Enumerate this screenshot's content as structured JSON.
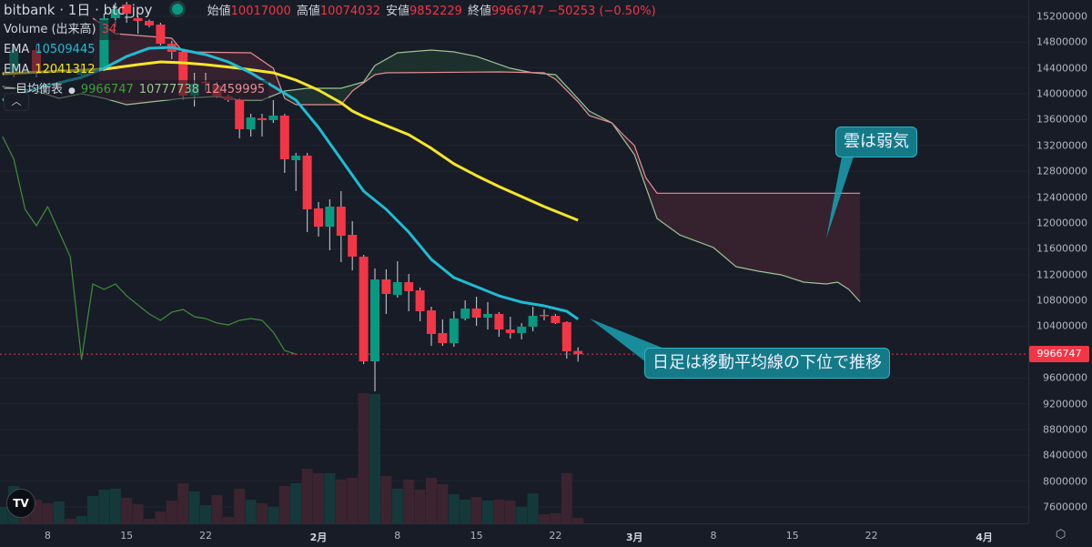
{
  "header": {
    "title": "bitbank · 1日 · btc_jpy",
    "ohlc": [
      {
        "key": "始値",
        "value": "10017000"
      },
      {
        "key": "高値",
        "value": "10074032"
      },
      {
        "key": "安値",
        "value": "9852229"
      },
      {
        "key": "終値",
        "value": "9966747"
      }
    ],
    "change": "−50253 (−0.50%)"
  },
  "legend": {
    "volume": {
      "label": "Volume (出来高)",
      "value": "34"
    },
    "ema1": {
      "label": "EMA",
      "value": "10509445"
    },
    "ema2": {
      "label": "EMA",
      "value": "12041312"
    },
    "ichimoku": {
      "label": "一目均衡表",
      "v1": "9966747",
      "v2": "10777738",
      "v3": "12459995"
    },
    "collapse_icon": "chevron-up"
  },
  "annotations": {
    "cloud": "雲は弱気",
    "daily": "日足は移動平均線の下位で推移"
  },
  "logo": "TV",
  "colors": {
    "up": "#089981",
    "down": "#f23645",
    "ema_short": "#1fbcd2",
    "ema_long": "#f5e52a",
    "lagging": "#3f8f3a",
    "span_a": "#9cc493",
    "span_b": "#e58f93",
    "cloud_bear": "#3a2230",
    "cloud_bull": "#1e3330",
    "annotation": "#147a87"
  },
  "chart_data": {
    "type": "candlestick",
    "yaxis": {
      "range": [
        7400000,
        15400000
      ],
      "ticks": [
        "15200000",
        "14800000",
        "14400000",
        "14000000",
        "13600000",
        "13200000",
        "12800000",
        "12400000",
        "12000000",
        "11600000",
        "11200000",
        "10800000",
        "10400000",
        "9600000",
        "9200000",
        "8800000",
        "8400000",
        "8000000",
        "7600000"
      ],
      "last_price": "9966747"
    },
    "xaxis": {
      "ticks": [
        {
          "label": "8",
          "date": "1/8"
        },
        {
          "label": "15",
          "date": "1/15"
        },
        {
          "label": "22",
          "date": "1/22"
        },
        {
          "label": "2月",
          "date": "2/1",
          "month": true
        },
        {
          "label": "8",
          "date": "2/8"
        },
        {
          "label": "15",
          "date": "2/15"
        },
        {
          "label": "22",
          "date": "2/22"
        },
        {
          "label": "3月",
          "date": "3/1",
          "month": true
        },
        {
          "label": "8",
          "date": "3/8"
        },
        {
          "label": "15",
          "date": "3/15"
        },
        {
          "label": "22",
          "date": "3/22"
        },
        {
          "label": "4月",
          "date": "4/1",
          "month": true
        }
      ]
    },
    "candles": [
      [
        "1/5",
        14326000,
        14749000,
        14255000,
        14678000
      ],
      [
        "1/7",
        14678000,
        14749000,
        14255000,
        14326000
      ],
      [
        "1/11",
        14298000,
        14439000,
        14241000,
        14382000
      ],
      [
        "1/13",
        14396000,
        15242000,
        14354000,
        15172000
      ],
      [
        "1/14",
        15172000,
        15412000,
        15031000,
        15313000
      ],
      [
        "1/15",
        15383000,
        15426000,
        15101000,
        15242000
      ],
      [
        "1/16",
        15172000,
        15200000,
        14932000,
        15130000
      ],
      [
        "1/17",
        15130000,
        15150000,
        15031000,
        15059000
      ],
      [
        "1/18",
        15073000,
        15101000,
        14749000,
        14777000
      ],
      [
        "1/19",
        14777000,
        14819000,
        14537000,
        14650000
      ],
      [
        "1/20",
        14650000,
        14678000,
        13903000,
        13973000
      ],
      [
        "1/21",
        13973000,
        14326000,
        13804000,
        14157000
      ],
      [
        "1/22",
        14185000,
        14326000,
        14044000,
        14171000
      ],
      [
        "1/23",
        14128000,
        14185000,
        13931000,
        13959000
      ],
      [
        "1/24",
        13959000,
        13987000,
        13875000,
        13903000
      ],
      [
        "1/25",
        13903000,
        13931000,
        13311000,
        13452000
      ],
      [
        "1/26",
        13452000,
        13691000,
        13339000,
        13635000
      ],
      [
        "1/27",
        13621000,
        13691000,
        13339000,
        13593000
      ],
      [
        "1/28",
        13593000,
        13903000,
        13550000,
        13663000
      ],
      [
        "1/29",
        13663000,
        13691000,
        12775000,
        12986000
      ],
      [
        "1/30",
        12972000,
        13085000,
        12493000,
        13043000
      ],
      [
        "1/31",
        13043000,
        13085000,
        11858000,
        12211000
      ],
      [
        "2/1",
        12225000,
        12324000,
        11788000,
        11943000
      ],
      [
        "2/2",
        11943000,
        12366000,
        11576000,
        12253000
      ],
      [
        "2/3",
        12253000,
        12493000,
        11393000,
        11802000
      ],
      [
        "2/4",
        11816000,
        12028000,
        11266000,
        11478000
      ],
      [
        "2/5",
        11478000,
        11506000,
        9814000,
        9856000
      ],
      [
        "2/6",
        9856000,
        11294000,
        9391000,
        11125000
      ],
      [
        "2/7",
        11125000,
        11280000,
        10590000,
        10900000
      ],
      [
        "2/8",
        10886000,
        11407000,
        10843000,
        11083000
      ],
      [
        "2/9",
        11083000,
        11210000,
        10632000,
        10942000
      ],
      [
        "2/10",
        10956000,
        10998000,
        10477000,
        10632000
      ],
      [
        "2/11",
        10646000,
        10702000,
        10096000,
        10280000
      ],
      [
        "2/12",
        10294000,
        10505000,
        10096000,
        10139000
      ],
      [
        "2/13",
        10139000,
        10632000,
        10082000,
        10519000
      ],
      [
        "2/14",
        10519000,
        10801000,
        10491000,
        10674000
      ],
      [
        "2/15",
        10674000,
        10857000,
        10407000,
        10533000
      ],
      [
        "2/16",
        10533000,
        10773000,
        10350000,
        10590000
      ],
      [
        "2/17",
        10590000,
        10618000,
        10237000,
        10350000
      ],
      [
        "2/18",
        10350000,
        10547000,
        10209000,
        10294000
      ],
      [
        "2/19",
        10294000,
        10449000,
        10195000,
        10393000
      ],
      [
        "2/20",
        10393000,
        10702000,
        10322000,
        10561000
      ],
      [
        "2/21",
        10575000,
        10660000,
        10491000,
        10554000
      ],
      [
        "2/22",
        10561000,
        10590000,
        10435000,
        10449000
      ],
      [
        "2/23",
        10463000,
        10477000,
        9898000,
        10011000
      ],
      [
        "2/24",
        10017000,
        10074032,
        9852229,
        9966747
      ]
    ],
    "volume": [
      [
        "1/4",
        103,
        "up"
      ],
      [
        "1/5",
        234,
        "up"
      ],
      [
        "1/6",
        160,
        "down"
      ],
      [
        "1/7",
        148,
        "down"
      ],
      [
        "1/8",
        125,
        "down"
      ],
      [
        "1/9",
        137,
        "up"
      ],
      [
        "1/10",
        29,
        "down"
      ],
      [
        "1/11",
        46,
        "up"
      ],
      [
        "1/12",
        171,
        "up"
      ],
      [
        "1/13",
        211,
        "up"
      ],
      [
        "1/14",
        217,
        "up"
      ],
      [
        "1/15",
        160,
        "down"
      ],
      [
        "1/16",
        120,
        "down"
      ],
      [
        "1/17",
        29,
        "down"
      ],
      [
        "1/18",
        74,
        "down"
      ],
      [
        "1/19",
        143,
        "down"
      ],
      [
        "1/20",
        251,
        "down"
      ],
      [
        "1/21",
        200,
        "up"
      ],
      [
        "1/22",
        114,
        "up"
      ],
      [
        "1/23",
        177,
        "down"
      ],
      [
        "1/24",
        40,
        "down"
      ],
      [
        "1/25",
        217,
        "down"
      ],
      [
        "1/26",
        148,
        "up"
      ],
      [
        "1/27",
        125,
        "down"
      ],
      [
        "1/28",
        103,
        "up"
      ],
      [
        "1/29",
        234,
        "down"
      ],
      [
        "1/30",
        251,
        "up"
      ],
      [
        "1/31",
        342,
        "down"
      ],
      [
        "2/1",
        314,
        "down"
      ],
      [
        "2/2",
        314,
        "up"
      ],
      [
        "2/3",
        274,
        "down"
      ],
      [
        "2/4",
        285,
        "down"
      ],
      [
        "2/5",
        815,
        "down"
      ],
      [
        "2/6",
        809,
        "up"
      ],
      [
        "2/7",
        296,
        "down"
      ],
      [
        "2/8",
        217,
        "up"
      ],
      [
        "2/9",
        274,
        "down"
      ],
      [
        "2/10",
        211,
        "down"
      ],
      [
        "2/11",
        285,
        "down"
      ],
      [
        "2/12",
        245,
        "down"
      ],
      [
        "2/13",
        182,
        "up"
      ],
      [
        "2/14",
        148,
        "up"
      ],
      [
        "2/15",
        165,
        "down"
      ],
      [
        "2/16",
        143,
        "up"
      ],
      [
        "2/17",
        148,
        "down"
      ],
      [
        "2/18",
        143,
        "down"
      ],
      [
        "2/19",
        103,
        "up"
      ],
      [
        "2/20",
        188,
        "up"
      ],
      [
        "2/21",
        57,
        "down"
      ],
      [
        "2/22",
        63,
        "down"
      ],
      [
        "2/23",
        314,
        "down"
      ],
      [
        "2/24",
        34,
        "down"
      ]
    ],
    "lines": {
      "ema_short": [
        [
          "1/4",
          13903000
        ],
        [
          "1/7",
          14086000
        ],
        [
          "1/11",
          14255000
        ],
        [
          "1/13",
          14396000
        ],
        [
          "1/15",
          14580000
        ],
        [
          "1/17",
          14707000
        ],
        [
          "1/19",
          14721000
        ],
        [
          "1/20",
          14678000
        ],
        [
          "1/22",
          14608000
        ],
        [
          "1/24",
          14495000
        ],
        [
          "1/26",
          14326000
        ],
        [
          "1/28",
          14114000
        ],
        [
          "1/30",
          13903000
        ],
        [
          "2/1",
          13480000
        ],
        [
          "2/3",
          12986000
        ],
        [
          "2/5",
          12493000
        ],
        [
          "2/7",
          12211000
        ],
        [
          "2/9",
          11858000
        ],
        [
          "2/11",
          11435000
        ],
        [
          "2/13",
          11153000
        ],
        [
          "2/15",
          11012000
        ],
        [
          "2/17",
          10871000
        ],
        [
          "2/19",
          10773000
        ],
        [
          "2/21",
          10716000
        ],
        [
          "2/23",
          10632000
        ],
        [
          "2/24",
          10509445
        ]
      ],
      "ema_long": [
        [
          "1/4",
          14312000
        ],
        [
          "1/13",
          14382000
        ],
        [
          "1/16",
          14453000
        ],
        [
          "1/18",
          14495000
        ],
        [
          "1/20",
          14481000
        ],
        [
          "1/22",
          14453000
        ],
        [
          "1/25",
          14396000
        ],
        [
          "1/28",
          14326000
        ],
        [
          "1/30",
          14213000
        ],
        [
          "2/1",
          14058000
        ],
        [
          "2/3",
          13861000
        ],
        [
          "2/4",
          13734000
        ],
        [
          "2/5",
          13649000
        ],
        [
          "2/7",
          13508000
        ],
        [
          "2/9",
          13367000
        ],
        [
          "2/11",
          13156000
        ],
        [
          "2/13",
          12916000
        ],
        [
          "2/15",
          12733000
        ],
        [
          "2/17",
          12563000
        ],
        [
          "2/19",
          12408000
        ],
        [
          "2/21",
          12253000
        ],
        [
          "2/23",
          12112000
        ],
        [
          "2/24",
          12041312
        ]
      ],
      "lagging_span": [
        [
          "1/4",
          13339000
        ],
        [
          "1/5",
          12986000
        ],
        [
          "1/6",
          12211000
        ],
        [
          "1/7",
          11957000
        ],
        [
          "1/8",
          12253000
        ],
        [
          "1/10",
          11478000
        ],
        [
          "1/11",
          9884000
        ],
        [
          "1/12",
          11055000
        ],
        [
          "1/13",
          10970000
        ],
        [
          "1/14",
          11055000
        ],
        [
          "1/15",
          10871000
        ],
        [
          "1/16",
          10730000
        ],
        [
          "1/17",
          10590000
        ],
        [
          "1/18",
          10491000
        ],
        [
          "1/19",
          10618000
        ],
        [
          "1/20",
          10660000
        ],
        [
          "1/21",
          10547000
        ],
        [
          "1/22",
          10519000
        ],
        [
          "1/23",
          10449000
        ],
        [
          "1/24",
          10420000
        ],
        [
          "1/25",
          10491000
        ],
        [
          "1/26",
          10519000
        ],
        [
          "1/27",
          10491000
        ],
        [
          "1/28",
          10307000
        ],
        [
          "1/29",
          10025000
        ],
        [
          "1/30",
          9966747
        ]
      ],
      "span_a": [
        [
          "1/4",
          14114000
        ],
        [
          "1/7",
          14044000
        ],
        [
          "1/9",
          13931000
        ],
        [
          "1/11",
          14002000
        ],
        [
          "1/13",
          13931000
        ],
        [
          "1/15",
          13832000
        ],
        [
          "1/20",
          13931000
        ],
        [
          "1/23",
          13959000
        ],
        [
          "1/25",
          13903000
        ],
        [
          "1/27",
          13903000
        ],
        [
          "1/29",
          14044000
        ],
        [
          "1/31",
          14086000
        ],
        [
          "2/3",
          14086000
        ],
        [
          "2/5",
          14185000
        ],
        [
          "2/6",
          14439000
        ],
        [
          "2/8",
          14636000
        ],
        [
          "2/11",
          14678000
        ],
        [
          "2/13",
          14650000
        ],
        [
          "2/15",
          14580000
        ],
        [
          "2/18",
          14396000
        ],
        [
          "2/20",
          14326000
        ],
        [
          "2/22",
          14298000
        ],
        [
          "2/23",
          14114000
        ],
        [
          "2/25",
          13734000
        ],
        [
          "2/27",
          13550000
        ],
        [
          "3/1",
          13057000
        ],
        [
          "3/2",
          12563000
        ],
        [
          "3/3",
          12070000
        ],
        [
          "3/5",
          11816000
        ],
        [
          "3/8",
          11619000
        ],
        [
          "3/10",
          11323000
        ],
        [
          "3/12",
          11252000
        ],
        [
          "3/14",
          11196000
        ],
        [
          "3/16",
          11083000
        ],
        [
          "3/18",
          11055000
        ],
        [
          "3/19",
          11083000
        ],
        [
          "3/20",
          10970000
        ],
        [
          "3/21",
          10777738
        ]
      ],
      "span_b": [
        [
          "1/12",
          15172000
        ],
        [
          "1/14",
          14932000
        ],
        [
          "1/19",
          14862000
        ],
        [
          "1/20",
          14650000
        ],
        [
          "1/26",
          14636000
        ],
        [
          "1/28",
          14396000
        ],
        [
          "1/29",
          13931000
        ],
        [
          "1/30",
          13832000
        ],
        [
          "2/3",
          13832000
        ],
        [
          "2/4",
          14044000
        ],
        [
          "2/6",
          14298000
        ],
        [
          "2/7",
          14326000
        ],
        [
          "2/17",
          14340000
        ],
        [
          "2/21",
          14326000
        ],
        [
          "2/22",
          14227000
        ],
        [
          "2/24",
          13875000
        ],
        [
          "2/25",
          13663000
        ],
        [
          "2/27",
          13550000
        ],
        [
          "2/28",
          13367000
        ],
        [
          "3/1",
          13198000
        ],
        [
          "3/2",
          12704000
        ],
        [
          "3/3",
          12459995
        ],
        [
          "3/21",
          12459995
        ]
      ]
    }
  }
}
